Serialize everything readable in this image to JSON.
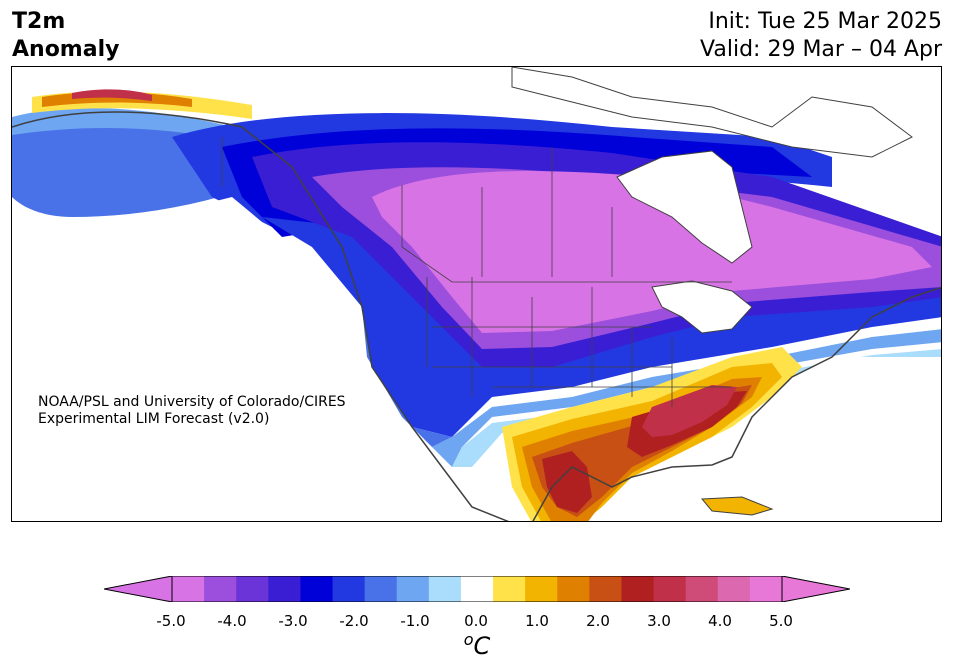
{
  "header": {
    "variable": "T2m",
    "field": "Anomaly",
    "init": "Init: Tue 25 Mar 2025",
    "valid": "Valid: 29 Mar – 04 Apr"
  },
  "credit": {
    "line1": "NOAA/PSL and University of Colorado/CIRES",
    "line2": "Experimental LIM Forecast (v2.0)"
  },
  "colorbar": {
    "tick_labels": [
      "-5.0",
      "-4.0",
      "-3.0",
      "-2.0",
      "-1.0",
      "0.0",
      "1.0",
      "2.0",
      "3.0",
      "4.0",
      "5.0"
    ],
    "unit_base": "C",
    "unit_sup": "o",
    "levels": [
      -5.0,
      -4.5,
      -4.0,
      -3.5,
      -3.0,
      -2.5,
      -2.0,
      -1.5,
      -1.0,
      -0.5,
      0.5,
      1.0,
      1.5,
      2.0,
      2.5,
      3.0,
      3.5,
      4.0,
      4.5,
      5.0
    ],
    "colors": {
      "under": "#d873e6",
      "bins": [
        "#d873e6",
        "#9b4fdc",
        "#6a34d8",
        "#3a1ed4",
        "#0000d8",
        "#2238e0",
        "#4a72e8",
        "#6ea6f2",
        "#aadcfc",
        "#ffffff",
        "#ffe24a",
        "#f2b400",
        "#e08000",
        "#c85014",
        "#b02020",
        "#c03048",
        "#d04c78",
        "#dc68b0",
        "#e878d8"
      ],
      "over": "#e878d8"
    }
  },
  "map": {
    "region": "North America",
    "colors": {
      "strong_cold": "#d873e6",
      "cold_4": "#9b4fdc",
      "cold_3": "#3a1ed4",
      "cold_25": "#0000d8",
      "cold_2": "#2238e0",
      "cold_15": "#4a72e8",
      "cold_1": "#6ea6f2",
      "cold_05": "#aadcfc",
      "warm_05": "#ffe24a",
      "warm_1": "#f2b400",
      "warm_15": "#e08000",
      "warm_2": "#c85014",
      "warm_25": "#b02020",
      "warm_3": "#c03048",
      "coast": "#404040"
    }
  }
}
